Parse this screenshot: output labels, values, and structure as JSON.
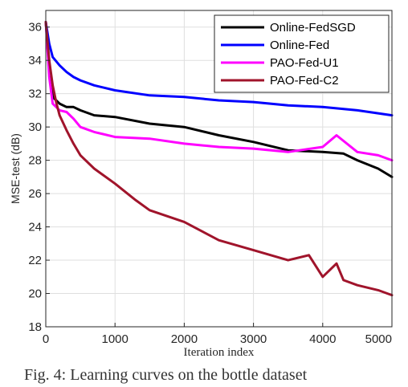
{
  "chart_data": {
    "type": "line",
    "xlabel": "Iteration index",
    "ylabel": "MSE-test (dB)",
    "xlim": [
      0,
      5000
    ],
    "ylim": [
      18,
      37
    ],
    "xticks": [
      0,
      1000,
      2000,
      3000,
      4000,
      5000
    ],
    "yticks": [
      18,
      20,
      22,
      24,
      26,
      28,
      30,
      32,
      34,
      36
    ],
    "grid": true,
    "legend_position": "top-right",
    "series": [
      {
        "name": "Online-FedSGD",
        "color": "#000000",
        "x": [
          0,
          50,
          100,
          200,
          300,
          400,
          500,
          700,
          1000,
          1500,
          2000,
          2500,
          3000,
          3500,
          4000,
          4300,
          4500,
          4800,
          5000
        ],
        "y": [
          36.3,
          33.5,
          31.8,
          31.4,
          31.2,
          31.2,
          31.0,
          30.7,
          30.6,
          30.2,
          30.0,
          29.5,
          29.1,
          28.6,
          28.5,
          28.4,
          28.0,
          27.5,
          27.0
        ]
      },
      {
        "name": "Online-Fed",
        "color": "#0000ff",
        "x": [
          0,
          50,
          100,
          200,
          300,
          400,
          500,
          700,
          1000,
          1500,
          2000,
          2500,
          3000,
          3500,
          4000,
          4500,
          5000
        ],
        "y": [
          36.3,
          35.0,
          34.2,
          33.7,
          33.3,
          33.0,
          32.8,
          32.5,
          32.2,
          31.9,
          31.8,
          31.6,
          31.5,
          31.3,
          31.2,
          31.0,
          30.7
        ]
      },
      {
        "name": "PAO-Fed-U1",
        "color": "#ff00ff",
        "x": [
          0,
          50,
          100,
          200,
          300,
          400,
          500,
          700,
          1000,
          1500,
          2000,
          2500,
          3000,
          3500,
          4000,
          4200,
          4500,
          4800,
          5000
        ],
        "y": [
          36.3,
          33.0,
          31.4,
          31.0,
          30.9,
          30.5,
          30.0,
          29.7,
          29.4,
          29.3,
          29.0,
          28.8,
          28.7,
          28.5,
          28.8,
          29.5,
          28.5,
          28.3,
          28.0
        ]
      },
      {
        "name": "PAO-Fed-C2",
        "color": "#a0142b",
        "x": [
          0,
          50,
          100,
          150,
          200,
          300,
          400,
          500,
          700,
          1000,
          1300,
          1500,
          2000,
          2500,
          3000,
          3500,
          3800,
          4000,
          4200,
          4300,
          4500,
          4800,
          5000
        ],
        "y": [
          36.3,
          34.0,
          32.5,
          31.5,
          30.7,
          29.8,
          29.0,
          28.3,
          27.5,
          26.6,
          25.6,
          25.0,
          24.3,
          23.2,
          22.6,
          22.0,
          22.3,
          21.0,
          21.8,
          20.8,
          20.5,
          20.2,
          19.9
        ]
      }
    ]
  },
  "caption": "Fig. 4: Learning curves on the bottle dataset"
}
